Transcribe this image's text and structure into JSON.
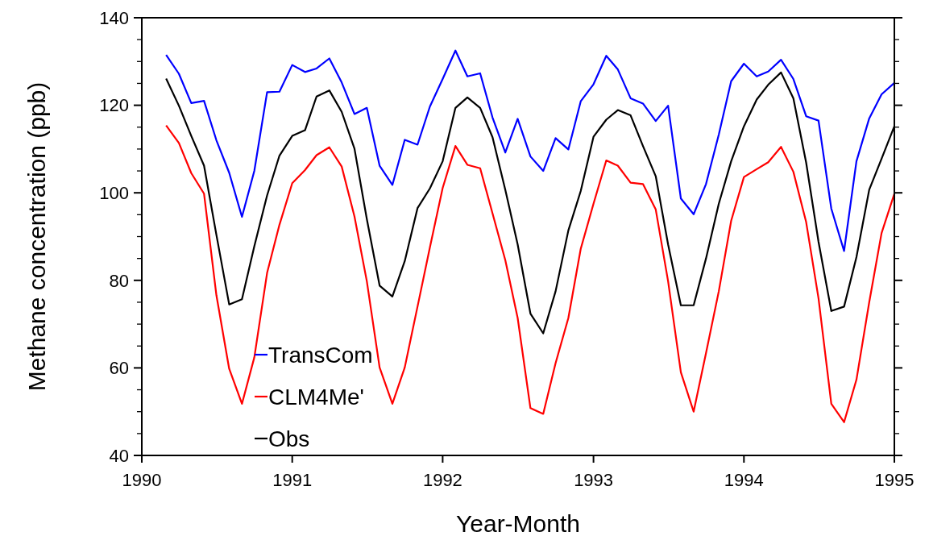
{
  "chart_data": {
    "type": "line",
    "xlabel": "Year-Month",
    "ylabel": "Methane concentration (ppb)",
    "x": [
      "1990-03",
      "1990-04",
      "1990-05",
      "1990-06",
      "1990-07",
      "1990-08",
      "1990-09",
      "1990-10",
      "1990-11",
      "1990-12",
      "1991-01",
      "1991-02",
      "1991-03",
      "1991-04",
      "1991-05",
      "1991-06",
      "1991-07",
      "1991-08",
      "1991-09",
      "1991-10",
      "1991-11",
      "1991-12",
      "1992-01",
      "1992-02",
      "1992-03",
      "1992-04",
      "1992-05",
      "1992-06",
      "1992-07",
      "1992-08",
      "1992-09",
      "1992-10",
      "1992-11",
      "1992-12",
      "1993-01",
      "1993-02",
      "1993-03",
      "1993-04",
      "1993-05",
      "1993-06",
      "1993-07",
      "1993-08",
      "1993-09",
      "1993-10",
      "1993-11",
      "1993-12",
      "1994-01",
      "1994-02",
      "1994-03",
      "1994-04",
      "1994-05",
      "1994-06",
      "1994-07",
      "1994-08",
      "1994-09",
      "1994-10",
      "1994-11",
      "1994-12",
      "1995-01"
    ],
    "series": [
      {
        "name": "TransCom",
        "color": "#0000ff",
        "values": [
          131.5,
          127.2,
          120.5,
          121.0,
          112.0,
          104.6,
          94.5,
          105.0,
          123.0,
          123.1,
          129.2,
          127.6,
          128.4,
          130.7,
          125.2,
          118.0,
          119.4,
          106.2,
          101.8,
          112.1,
          111.0,
          119.7,
          126.0,
          132.5,
          126.6,
          127.3,
          117.2,
          109.2,
          116.9,
          108.3,
          105.0,
          112.5,
          109.9,
          120.9,
          124.8,
          131.3,
          128.2,
          121.6,
          120.4,
          116.4,
          119.9,
          98.7,
          95.1,
          102.0,
          113.3,
          125.5,
          129.5,
          126.6,
          127.7,
          130.4,
          126.0,
          117.5,
          116.5,
          96.4,
          86.7,
          107.2,
          117.0,
          122.5,
          125.1
        ]
      },
      {
        "name": "CLM4Me'",
        "color": "#ff0000",
        "values": [
          115.4,
          111.4,
          104.5,
          99.8,
          76.6,
          59.8,
          51.8,
          62.4,
          81.7,
          92.7,
          102.2,
          105.2,
          108.6,
          110.4,
          106.0,
          94.6,
          79.8,
          60.1,
          51.8,
          60.1,
          74.0,
          87.5,
          101.1,
          110.7,
          106.4,
          105.6,
          95.3,
          84.6,
          71.4,
          50.8,
          49.5,
          61.1,
          71.4,
          87.2,
          97.5,
          107.4,
          106.2,
          102.3,
          102.0,
          96.2,
          79.8,
          59.0,
          50.0,
          63.4,
          77.5,
          93.6,
          103.6,
          105.4,
          107.0,
          110.5,
          104.8,
          93.3,
          75.9,
          51.8,
          47.6,
          57.3,
          75.0,
          90.8,
          99.8
        ]
      },
      {
        "name": "Obs",
        "color": "#000000",
        "values": [
          126.1,
          119.9,
          113.0,
          106.2,
          90.4,
          74.5,
          75.7,
          87.8,
          99.4,
          108.5,
          113.0,
          114.3,
          122.0,
          123.4,
          118.5,
          110.1,
          94.0,
          78.8,
          76.3,
          84.4,
          96.5,
          101.0,
          107.2,
          119.4,
          121.8,
          119.4,
          112.7,
          100.7,
          88.2,
          72.4,
          67.9,
          77.5,
          91.4,
          100.4,
          112.8,
          116.7,
          118.9,
          117.7,
          110.7,
          103.8,
          88.2,
          74.3,
          74.3,
          85.0,
          97.5,
          107.2,
          115.2,
          121.3,
          124.7,
          127.5,
          121.6,
          106.9,
          88.8,
          73.0,
          74.0,
          85.3,
          100.7,
          107.8,
          115.2
        ]
      }
    ],
    "xlim": [
      "1990",
      "1995"
    ],
    "xticks": [
      "1990",
      "1991",
      "1992",
      "1993",
      "1994",
      "1995"
    ],
    "ylim": [
      40,
      140
    ],
    "yticks": [
      40,
      {
        "value": 45,
        "label": null
      },
      {
        "value": 50,
        "label": null
      },
      {
        "value": 55,
        "label": null
      },
      60,
      {
        "value": 65,
        "label": null
      },
      {
        "value": 70,
        "label": null
      },
      {
        "value": 75,
        "label": null
      },
      80,
      {
        "value": 85,
        "label": null
      },
      {
        "value": 90,
        "label": null
      },
      {
        "value": 95,
        "label": null
      },
      100,
      {
        "value": 105,
        "label": null
      },
      {
        "value": 110,
        "label": null
      },
      {
        "value": 115,
        "label": null
      },
      120,
      {
        "value": 125,
        "label": null
      },
      {
        "value": 130,
        "label": null
      },
      {
        "value": 135,
        "label": null
      },
      140
    ],
    "grid": false,
    "legend": "bottom left",
    "line_style": "solid",
    "marker": "none"
  }
}
